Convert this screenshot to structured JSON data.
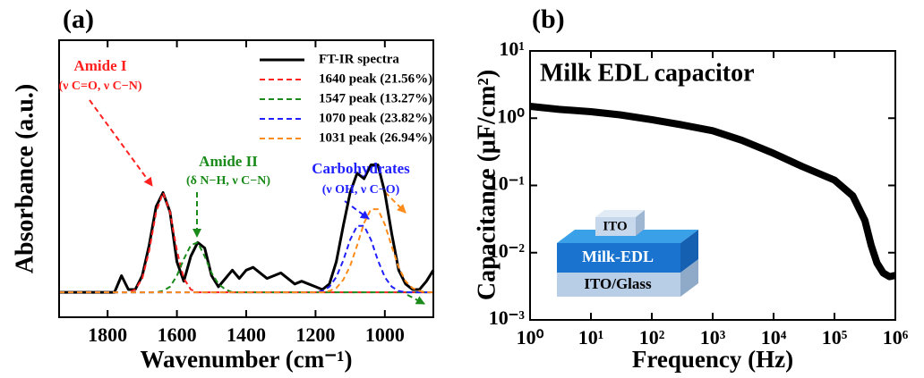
{
  "chart_data": [
    {
      "type": "line",
      "panel_label": "(a)",
      "x_label": "Wavenumber (cm⁻¹)",
      "y_label": "Absorbance (a.u.)",
      "xlim": [
        1940,
        860
      ],
      "ylim": [
        0,
        1
      ],
      "xticks": [
        1800,
        1600,
        1400,
        1200,
        1000
      ],
      "annotations": [
        {
          "text": "Amide I",
          "color": "#ff2020"
        },
        {
          "text": "(ν C=O, ν C−N)",
          "color": "#ff2020"
        },
        {
          "text": "Amide II",
          "color": "#1a8a1a"
        },
        {
          "text": "(δ N−H, ν C−N)",
          "color": "#1a8a1a"
        },
        {
          "text": "Carbohydrates",
          "color": "#1f1fff"
        },
        {
          "text": "(ν OH, ν C−O)",
          "color": "#1f1fff"
        }
      ],
      "x": [
        1940,
        1920,
        1900,
        1880,
        1860,
        1840,
        1820,
        1800,
        1780,
        1760,
        1740,
        1720,
        1700,
        1680,
        1660,
        1640,
        1620,
        1600,
        1580,
        1560,
        1540,
        1520,
        1500,
        1480,
        1460,
        1440,
        1420,
        1400,
        1380,
        1360,
        1340,
        1320,
        1300,
        1280,
        1260,
        1240,
        1220,
        1200,
        1180,
        1160,
        1140,
        1120,
        1100,
        1080,
        1060,
        1040,
        1020,
        1000,
        980,
        960,
        940,
        920,
        900,
        880,
        860
      ],
      "series": [
        {
          "name": "FT-IR spectra",
          "color": "#000000",
          "linestyle": "solid",
          "values": [
            0.09,
            0.09,
            0.09,
            0.09,
            0.09,
            0.09,
            0.09,
            0.09,
            0.09,
            0.15,
            0.1,
            0.1,
            0.15,
            0.26,
            0.4,
            0.45,
            0.38,
            0.2,
            0.13,
            0.22,
            0.27,
            0.25,
            0.15,
            0.11,
            0.14,
            0.17,
            0.14,
            0.17,
            0.18,
            0.16,
            0.14,
            0.15,
            0.16,
            0.14,
            0.12,
            0.13,
            0.12,
            0.11,
            0.1,
            0.12,
            0.2,
            0.33,
            0.45,
            0.52,
            0.5,
            0.55,
            0.55,
            0.45,
            0.3,
            0.17,
            0.12,
            0.1,
            0.1,
            0.13,
            0.17
          ]
        },
        {
          "name": "1640 peak (21.56%)",
          "color": "#ff2020",
          "linestyle": "dashed",
          "values": [
            0.09,
            0.09,
            0.09,
            0.09,
            0.09,
            0.09,
            0.09,
            0.09,
            0.09,
            0.09,
            0.09,
            0.1,
            0.14,
            0.24,
            0.38,
            0.45,
            0.38,
            0.24,
            0.14,
            0.1,
            0.09,
            0.09,
            0.09,
            0.09,
            0.09,
            0.09,
            0.09,
            0.09,
            0.09,
            0.09,
            0.09,
            0.09,
            0.09,
            0.09,
            0.09,
            0.09,
            0.09,
            0.09,
            0.09,
            0.09,
            0.09,
            0.09,
            0.09,
            0.09,
            0.09,
            0.09,
            0.09,
            0.09,
            0.09,
            0.09,
            0.09,
            0.09,
            0.09,
            0.09,
            0.09
          ]
        },
        {
          "name": "1547 peak (13.27%)",
          "color": "#1a8a1a",
          "linestyle": "dashed",
          "values": [
            0.09,
            0.09,
            0.09,
            0.09,
            0.09,
            0.09,
            0.09,
            0.09,
            0.09,
            0.09,
            0.09,
            0.09,
            0.09,
            0.09,
            0.09,
            0.095,
            0.11,
            0.15,
            0.21,
            0.26,
            0.27,
            0.22,
            0.16,
            0.12,
            0.1,
            0.09,
            0.09,
            0.09,
            0.09,
            0.09,
            0.09,
            0.09,
            0.09,
            0.09,
            0.09,
            0.09,
            0.09,
            0.09,
            0.09,
            0.09,
            0.09,
            0.09,
            0.09,
            0.09,
            0.09,
            0.09,
            0.09,
            0.09,
            0.09,
            0.09,
            0.09,
            0.09,
            0.09,
            0.09,
            0.09
          ]
        },
        {
          "name": "1070 peak (23.82%)",
          "color": "#1f1fff",
          "linestyle": "dashed",
          "values": [
            0.09,
            0.09,
            0.09,
            0.09,
            0.09,
            0.09,
            0.09,
            0.09,
            0.09,
            0.09,
            0.09,
            0.09,
            0.09,
            0.09,
            0.09,
            0.09,
            0.09,
            0.09,
            0.09,
            0.09,
            0.09,
            0.09,
            0.09,
            0.09,
            0.09,
            0.09,
            0.09,
            0.09,
            0.09,
            0.09,
            0.09,
            0.09,
            0.09,
            0.09,
            0.09,
            0.09,
            0.09,
            0.09,
            0.095,
            0.11,
            0.145,
            0.205,
            0.28,
            0.33,
            0.33,
            0.28,
            0.205,
            0.145,
            0.11,
            0.095,
            0.09,
            0.09,
            0.09,
            0.09,
            0.09
          ]
        },
        {
          "name": "1031 peak (26.94%)",
          "color": "#ff8c1a",
          "linestyle": "dashed",
          "values": [
            0.09,
            0.09,
            0.09,
            0.09,
            0.09,
            0.09,
            0.09,
            0.09,
            0.09,
            0.09,
            0.09,
            0.09,
            0.09,
            0.09,
            0.09,
            0.09,
            0.09,
            0.09,
            0.09,
            0.09,
            0.09,
            0.09,
            0.09,
            0.09,
            0.09,
            0.09,
            0.09,
            0.09,
            0.09,
            0.09,
            0.09,
            0.09,
            0.09,
            0.09,
            0.09,
            0.09,
            0.09,
            0.09,
            0.09,
            0.095,
            0.105,
            0.135,
            0.185,
            0.26,
            0.34,
            0.39,
            0.39,
            0.335,
            0.255,
            0.18,
            0.13,
            0.105,
            0.095,
            0.09,
            0.09
          ]
        }
      ]
    },
    {
      "type": "line",
      "panel_label": "(b)",
      "x_label": "Frequency (Hz)",
      "y_label": "Capacitance (μF/cm²)",
      "annotations": [
        {
          "text": "Milk EDL capacitor",
          "color": "#000000"
        }
      ],
      "inset_labels": [
        "ITO",
        "Milk-EDL",
        "ITO/Glass"
      ],
      "xscale": "log",
      "yscale": "log",
      "xlim": [
        1,
        1000000
      ],
      "ylim": [
        0.001,
        10
      ],
      "xticks": [
        {
          "value": 1,
          "label": "10⁰"
        },
        {
          "value": 10,
          "label": "10¹"
        },
        {
          "value": 100,
          "label": "10²"
        },
        {
          "value": 1000,
          "label": "10³"
        },
        {
          "value": 10000,
          "label": "10⁴"
        },
        {
          "value": 100000,
          "label": "10⁵"
        },
        {
          "value": 1000000,
          "label": "10⁶"
        }
      ],
      "yticks": [
        {
          "value": 0.001,
          "label": "10⁻³"
        },
        {
          "value": 0.01,
          "label": "10⁻²"
        },
        {
          "value": 0.1,
          "label": "10⁻¹"
        },
        {
          "value": 1,
          "label": "10⁰"
        },
        {
          "value": 10,
          "label": "10¹"
        }
      ],
      "x": [
        1,
        3,
        10,
        30,
        100,
        300,
        1000,
        3000,
        10000,
        30000,
        100000,
        200000,
        316000,
        400000,
        500000,
        630000,
        800000,
        1000000
      ],
      "series": [
        {
          "color": "#000000",
          "linestyle": "solid",
          "values": [
            1.5,
            1.35,
            1.25,
            1.12,
            0.95,
            0.8,
            0.65,
            0.47,
            0.3,
            0.19,
            0.12,
            0.07,
            0.03,
            0.013,
            0.007,
            0.005,
            0.0044,
            0.0046
          ]
        }
      ]
    }
  ]
}
